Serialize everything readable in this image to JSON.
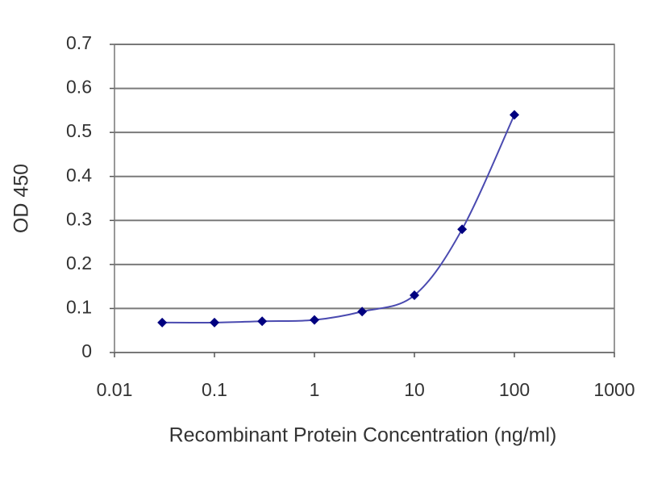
{
  "chart_data": {
    "type": "line",
    "xlabel": "Recombinant Protein Concentration (ng/ml)",
    "ylabel": "OD 450",
    "xscale": "log",
    "x": [
      0.03,
      0.1,
      0.3,
      1,
      3,
      10,
      30,
      100
    ],
    "series": [
      {
        "color": "#000080",
        "values": [
          0.068,
          0.068,
          0.071,
          0.074,
          0.093,
          0.13,
          0.28,
          0.54
        ]
      }
    ],
    "xlim": [
      0.01,
      1000
    ],
    "xticks": [
      0.01,
      0.1,
      1,
      10,
      100,
      1000
    ],
    "ylim": [
      0,
      0.7
    ],
    "yticks": [
      0,
      0.1,
      0.2,
      0.3,
      0.4,
      0.5,
      0.6,
      0.7
    ],
    "grid": true
  }
}
